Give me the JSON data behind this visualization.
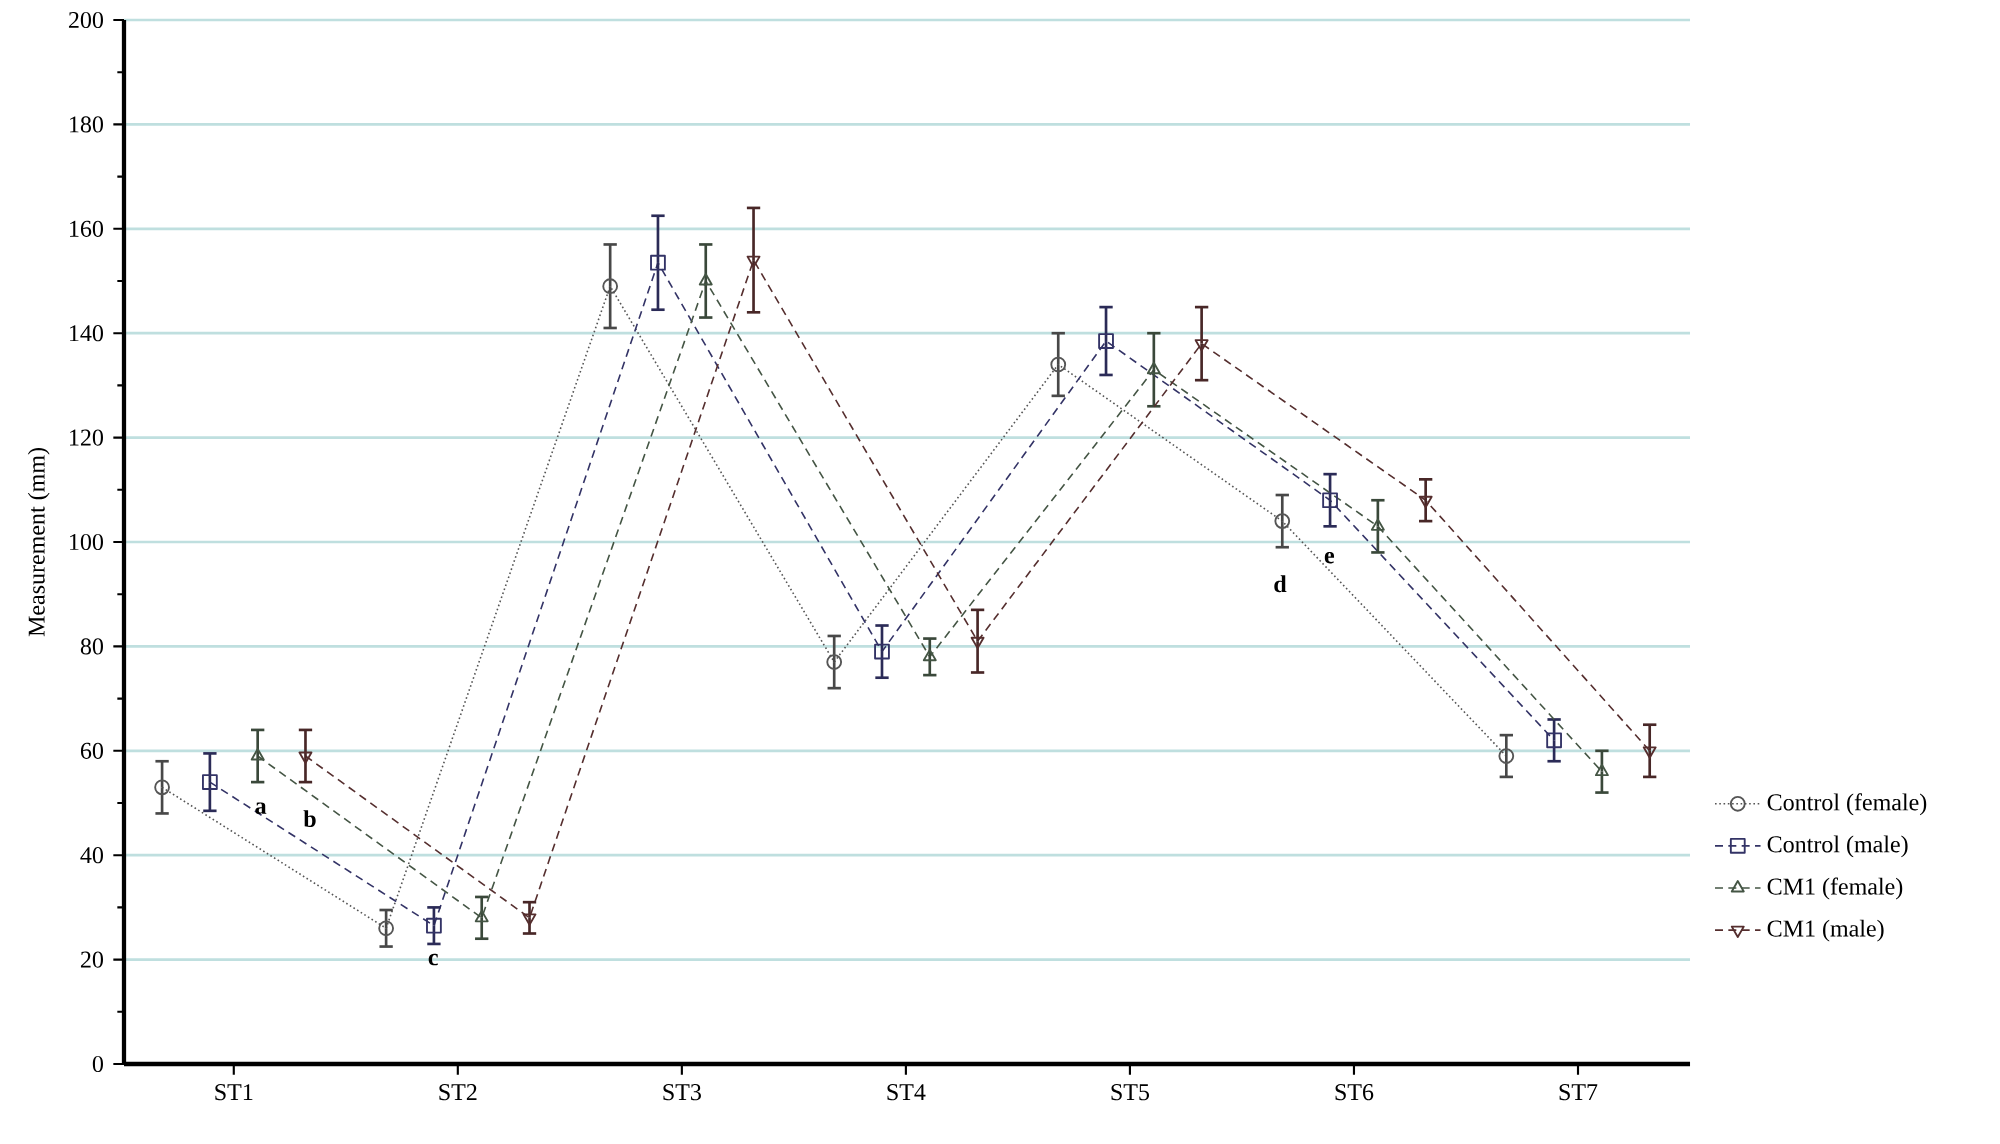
{
  "chart_data": {
    "type": "line",
    "ylabel": "Measurement (mm)",
    "categories": [
      "ST1",
      "ST2",
      "ST3",
      "ST4",
      "ST5",
      "ST6",
      "ST7"
    ],
    "series": [
      {
        "name": "Control (female)",
        "color": "#555555",
        "marker": "circle",
        "line_style": "dotted",
        "values": [
          53,
          26,
          149,
          77,
          134,
          104,
          59
        ],
        "errors": [
          5,
          3.5,
          8,
          5,
          6,
          5,
          4
        ]
      },
      {
        "name": "Control (male)",
        "color": "#333366",
        "marker": "square",
        "line_style": "dashed",
        "values": [
          54,
          26.5,
          153.5,
          79,
          138.5,
          108,
          62
        ],
        "errors": [
          5.5,
          3.5,
          9,
          5,
          6.5,
          5,
          4
        ]
      },
      {
        "name": "CM1 (female)",
        "color": "#445544",
        "marker": "triangle",
        "line_style": "dashed",
        "values": [
          59,
          28,
          150,
          78,
          133,
          103,
          56
        ],
        "errors": [
          5,
          4,
          7,
          3.5,
          7,
          5,
          4
        ]
      },
      {
        "name": "CM1 (male)",
        "color": "#552e2e",
        "marker": "triangle_down",
        "line_style": "dashed",
        "values": [
          59,
          28,
          154,
          81,
          138,
          108,
          60
        ],
        "errors": [
          5,
          3,
          10,
          6,
          7,
          4,
          5
        ]
      }
    ],
    "ylim": [
      0,
      200
    ],
    "yticks": [
      0,
      20,
      40,
      60,
      80,
      100,
      120,
      140,
      160,
      180,
      200
    ],
    "grid": "y",
    "legend": "right",
    "annotations": [
      "a",
      "b",
      "c",
      "d",
      "e"
    ]
  }
}
